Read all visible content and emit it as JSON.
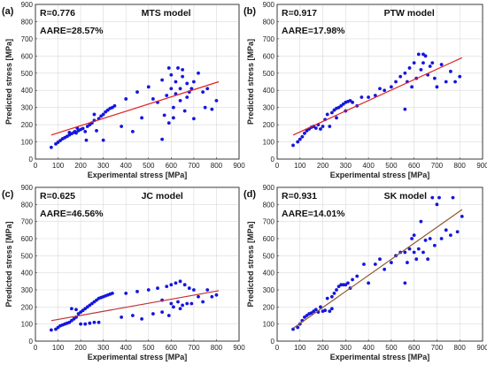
{
  "chart_data": [
    {
      "type": "scatter",
      "panel_label": "(a)",
      "model_label": "MTS model",
      "r_text": "R=0.776",
      "aare_text": "AARE=28.57%",
      "xlabel": "Experimental stress [MPa]",
      "ylabel": "Predicted stress [MPa]",
      "xlim": [
        0,
        900
      ],
      "ylim": [
        0,
        900
      ],
      "xticks": [
        0,
        100,
        200,
        300,
        400,
        500,
        600,
        700,
        800,
        900
      ],
      "yticks": [
        0,
        100,
        200,
        300,
        400,
        500,
        600,
        700,
        800,
        900
      ],
      "grid": true,
      "point_color": "#1515e0",
      "line_color": "#e02020",
      "fit_line": [
        [
          70,
          140
        ],
        [
          810,
          450
        ]
      ],
      "points": [
        [
          70,
          68
        ],
        [
          90,
          88
        ],
        [
          100,
          98
        ],
        [
          110,
          108
        ],
        [
          120,
          118
        ],
        [
          130,
          125
        ],
        [
          140,
          132
        ],
        [
          150,
          140
        ],
        [
          160,
          148
        ],
        [
          170,
          155
        ],
        [
          175,
          160
        ],
        [
          180,
          152
        ],
        [
          190,
          165
        ],
        [
          200,
          172
        ],
        [
          210,
          178
        ],
        [
          220,
          160
        ],
        [
          230,
          190
        ],
        [
          240,
          200
        ],
        [
          250,
          210
        ],
        [
          260,
          225
        ],
        [
          270,
          165
        ],
        [
          280,
          235
        ],
        [
          290,
          250
        ],
        [
          300,
          260
        ],
        [
          310,
          275
        ],
        [
          320,
          285
        ],
        [
          330,
          295
        ],
        [
          340,
          300
        ],
        [
          350,
          310
        ],
        [
          225,
          110
        ],
        [
          300,
          110
        ],
        [
          150,
          155
        ],
        [
          185,
          180
        ],
        [
          260,
          260
        ],
        [
          380,
          190
        ],
        [
          400,
          350
        ],
        [
          430,
          160
        ],
        [
          450,
          390
        ],
        [
          470,
          240
        ],
        [
          500,
          420
        ],
        [
          520,
          350
        ],
        [
          540,
          330
        ],
        [
          560,
          460
        ],
        [
          560,
          115
        ],
        [
          570,
          255
        ],
        [
          580,
          370
        ],
        [
          590,
          210
        ],
        [
          600,
          410
        ],
        [
          600,
          490
        ],
        [
          610,
          300
        ],
        [
          620,
          380
        ],
        [
          620,
          450
        ],
        [
          630,
          530
        ],
        [
          640,
          340
        ],
        [
          650,
          480
        ],
        [
          650,
          520
        ],
        [
          660,
          280
        ],
        [
          670,
          440
        ],
        [
          680,
          390
        ],
        [
          690,
          410
        ],
        [
          700,
          235
        ],
        [
          700,
          450
        ],
        [
          720,
          500
        ],
        [
          740,
          390
        ],
        [
          750,
          300
        ],
        [
          760,
          410
        ],
        [
          780,
          290
        ],
        [
          800,
          340
        ],
        [
          590,
          530
        ],
        [
          610,
          240
        ],
        [
          640,
          410
        ],
        [
          670,
          360
        ]
      ]
    },
    {
      "type": "scatter",
      "panel_label": "(b)",
      "model_label": "PTW model",
      "r_text": "R=0.917",
      "aare_text": "AARE=17.98%",
      "xlabel": "Experimental stress [MPa]",
      "ylabel": "Predicted stress [MPa]",
      "xlim": [
        0,
        900
      ],
      "ylim": [
        0,
        900
      ],
      "xticks": [
        0,
        100,
        200,
        300,
        400,
        500,
        600,
        700,
        800,
        900
      ],
      "yticks": [
        0,
        100,
        200,
        300,
        400,
        500,
        600,
        700,
        800,
        900
      ],
      "grid": true,
      "point_color": "#1515e0",
      "line_color": "#e02020",
      "fit_line": [
        [
          70,
          140
        ],
        [
          810,
          590
        ]
      ],
      "points": [
        [
          70,
          80
        ],
        [
          90,
          100
        ],
        [
          100,
          115
        ],
        [
          110,
          130
        ],
        [
          120,
          150
        ],
        [
          130,
          165
        ],
        [
          140,
          175
        ],
        [
          150,
          185
        ],
        [
          160,
          190
        ],
        [
          170,
          180
        ],
        [
          180,
          200
        ],
        [
          190,
          175
        ],
        [
          200,
          190
        ],
        [
          210,
          230
        ],
        [
          220,
          260
        ],
        [
          230,
          190
        ],
        [
          240,
          270
        ],
        [
          250,
          285
        ],
        [
          260,
          295
        ],
        [
          270,
          300
        ],
        [
          280,
          310
        ],
        [
          290,
          320
        ],
        [
          300,
          330
        ],
        [
          310,
          335
        ],
        [
          320,
          340
        ],
        [
          330,
          330
        ],
        [
          350,
          310
        ],
        [
          370,
          360
        ],
        [
          400,
          360
        ],
        [
          430,
          370
        ],
        [
          450,
          410
        ],
        [
          470,
          400
        ],
        [
          500,
          420
        ],
        [
          520,
          450
        ],
        [
          540,
          480
        ],
        [
          560,
          500
        ],
        [
          560,
          290
        ],
        [
          570,
          450
        ],
        [
          580,
          530
        ],
        [
          590,
          420
        ],
        [
          600,
          560
        ],
        [
          610,
          470
        ],
        [
          620,
          610
        ],
        [
          630,
          520
        ],
        [
          640,
          560
        ],
        [
          650,
          600
        ],
        [
          660,
          490
        ],
        [
          670,
          540
        ],
        [
          680,
          560
        ],
        [
          690,
          470
        ],
        [
          700,
          420
        ],
        [
          720,
          550
        ],
        [
          740,
          450
        ],
        [
          760,
          510
        ],
        [
          780,
          450
        ],
        [
          800,
          480
        ],
        [
          640,
          610
        ],
        [
          300,
          280
        ],
        [
          260,
          240
        ]
      ]
    },
    {
      "type": "scatter",
      "panel_label": "(c)",
      "model_label": "JC model",
      "r_text": "R=0.625",
      "aare_text": "AARE=46.56%",
      "xlabel": "Experimental stress [MPa]",
      "ylabel": "Predicted stress [MPa]",
      "xlim": [
        0,
        900
      ],
      "ylim": [
        0,
        900
      ],
      "xticks": [
        0,
        100,
        200,
        300,
        400,
        500,
        600,
        700,
        800,
        900
      ],
      "yticks": [
        0,
        100,
        200,
        300,
        400,
        500,
        600,
        700,
        800,
        900
      ],
      "grid": true,
      "point_color": "#1515e0",
      "line_color": "#c03030",
      "fit_line": [
        [
          70,
          120
        ],
        [
          810,
          295
        ]
      ],
      "points": [
        [
          70,
          65
        ],
        [
          90,
          70
        ],
        [
          100,
          80
        ],
        [
          110,
          90
        ],
        [
          120,
          95
        ],
        [
          130,
          100
        ],
        [
          140,
          105
        ],
        [
          150,
          110
        ],
        [
          160,
          120
        ],
        [
          170,
          130
        ],
        [
          180,
          140
        ],
        [
          190,
          160
        ],
        [
          200,
          170
        ],
        [
          210,
          180
        ],
        [
          220,
          190
        ],
        [
          230,
          200
        ],
        [
          240,
          210
        ],
        [
          250,
          220
        ],
        [
          260,
          230
        ],
        [
          270,
          240
        ],
        [
          280,
          250
        ],
        [
          290,
          255
        ],
        [
          300,
          260
        ],
        [
          310,
          265
        ],
        [
          320,
          270
        ],
        [
          330,
          275
        ],
        [
          340,
          280
        ],
        [
          200,
          100
        ],
        [
          220,
          100
        ],
        [
          240,
          105
        ],
        [
          260,
          110
        ],
        [
          280,
          110
        ],
        [
          160,
          190
        ],
        [
          180,
          185
        ],
        [
          380,
          140
        ],
        [
          400,
          280
        ],
        [
          430,
          150
        ],
        [
          450,
          290
        ],
        [
          470,
          130
        ],
        [
          500,
          300
        ],
        [
          520,
          160
        ],
        [
          540,
          310
        ],
        [
          560,
          170
        ],
        [
          580,
          320
        ],
        [
          590,
          150
        ],
        [
          600,
          330
        ],
        [
          610,
          200
        ],
        [
          620,
          340
        ],
        [
          630,
          230
        ],
        [
          640,
          350
        ],
        [
          650,
          210
        ],
        [
          660,
          330
        ],
        [
          670,
          220
        ],
        [
          680,
          310
        ],
        [
          690,
          220
        ],
        [
          700,
          300
        ],
        [
          720,
          260
        ],
        [
          740,
          230
        ],
        [
          760,
          300
        ],
        [
          780,
          260
        ],
        [
          800,
          270
        ],
        [
          600,
          220
        ],
        [
          560,
          240
        ],
        [
          640,
          190
        ]
      ]
    },
    {
      "type": "scatter",
      "panel_label": "(d)",
      "model_label": "SK model",
      "r_text": "R=0.931",
      "aare_text": "AARE=14.01%",
      "xlabel": "Experimental stress [MPa]",
      "ylabel": "Predicted stress [MPa]",
      "xlim": [
        0,
        900
      ],
      "ylim": [
        0,
        900
      ],
      "xticks": [
        0,
        100,
        200,
        300,
        400,
        500,
        600,
        700,
        800,
        900
      ],
      "yticks": [
        0,
        100,
        200,
        300,
        400,
        500,
        600,
        700,
        800,
        900
      ],
      "grid": true,
      "point_color": "#1515e0",
      "line_color": "#8b5a2b",
      "fit_line": [
        [
          70,
          75
        ],
        [
          810,
          770
        ]
      ],
      "points": [
        [
          70,
          70
        ],
        [
          90,
          80
        ],
        [
          100,
          100
        ],
        [
          110,
          120
        ],
        [
          120,
          140
        ],
        [
          130,
          150
        ],
        [
          140,
          160
        ],
        [
          150,
          165
        ],
        [
          160,
          175
        ],
        [
          170,
          185
        ],
        [
          180,
          170
        ],
        [
          190,
          200
        ],
        [
          200,
          175
        ],
        [
          210,
          180
        ],
        [
          220,
          250
        ],
        [
          230,
          175
        ],
        [
          240,
          260
        ],
        [
          250,
          280
        ],
        [
          260,
          300
        ],
        [
          270,
          320
        ],
        [
          280,
          330
        ],
        [
          290,
          330
        ],
        [
          300,
          330
        ],
        [
          310,
          340
        ],
        [
          320,
          310
        ],
        [
          330,
          360
        ],
        [
          350,
          380
        ],
        [
          380,
          450
        ],
        [
          400,
          340
        ],
        [
          430,
          450
        ],
        [
          450,
          480
        ],
        [
          470,
          420
        ],
        [
          500,
          460
        ],
        [
          520,
          500
        ],
        [
          540,
          520
        ],
        [
          560,
          520
        ],
        [
          570,
          460
        ],
        [
          580,
          540
        ],
        [
          590,
          600
        ],
        [
          600,
          520
        ],
        [
          610,
          480
        ],
        [
          620,
          540
        ],
        [
          630,
          700
        ],
        [
          640,
          520
        ],
        [
          650,
          590
        ],
        [
          660,
          480
        ],
        [
          670,
          600
        ],
        [
          680,
          840
        ],
        [
          690,
          560
        ],
        [
          700,
          800
        ],
        [
          710,
          840
        ],
        [
          720,
          600
        ],
        [
          740,
          650
        ],
        [
          760,
          620
        ],
        [
          770,
          840
        ],
        [
          790,
          640
        ],
        [
          810,
          730
        ],
        [
          560,
          340
        ],
        [
          600,
          620
        ],
        [
          240,
          190
        ]
      ]
    }
  ]
}
